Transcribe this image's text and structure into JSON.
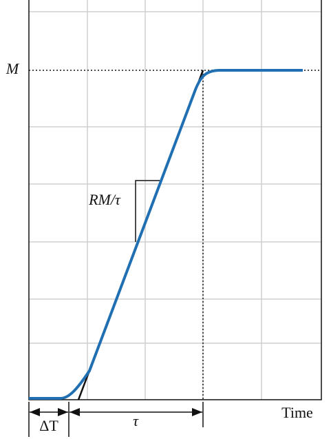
{
  "labels": {
    "level": "M",
    "slope": "RM/τ",
    "delay": "ΔT",
    "time_constant": "τ",
    "x_axis": "Time"
  }
}
